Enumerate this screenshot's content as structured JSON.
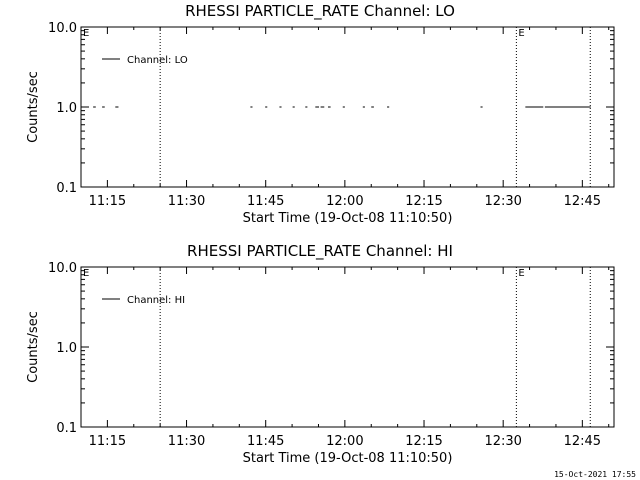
{
  "page": {
    "stamp": "15-Oct-2021 17:55"
  },
  "chart_data": [
    {
      "type": "line",
      "title": "RHESSI PARTICLE_RATE Channel: LO",
      "xlabel": "Start Time (19-Oct-08 11:10:50)",
      "ylabel": "Counts/sec",
      "yscale": "log",
      "xlim": [
        "11:10",
        "12:51"
      ],
      "ylim": [
        0.1,
        10.0
      ],
      "xticks": [
        "11:15",
        "11:30",
        "11:45",
        "12:00",
        "12:15",
        "12:30",
        "12:45"
      ],
      "yticks": [
        "0.1",
        "1.0",
        "10.0"
      ],
      "legend": {
        "position": "top-left",
        "entries": [
          "Channel: LO"
        ]
      },
      "vlines": [
        {
          "time": "11:25.0",
          "label": ""
        },
        {
          "time": "12:32.5",
          "label": "E"
        },
        {
          "time": "12:46.5",
          "label": ""
        }
      ],
      "edge_labels": [
        "E"
      ],
      "series": [
        {
          "name": "Channel: LO",
          "segments": [
            [
              "11:12.3",
              "11:12.8",
              1.0
            ],
            [
              "11:14.0",
              "11:14.5",
              1.0
            ],
            [
              "11:16.5",
              "11:17.1",
              1.0
            ],
            [
              "11:42.1",
              "11:42.5",
              1.0
            ],
            [
              "11:44.9",
              "11:45.3",
              1.0
            ],
            [
              "11:47.6",
              "11:48.0",
              1.0
            ],
            [
              "11:50.1",
              "11:50.5",
              1.0
            ],
            [
              "11:52.5",
              "11:52.9",
              1.0
            ],
            [
              "11:54.4",
              "11:55.1",
              1.0
            ],
            [
              "11:55.4",
              "11:56.1",
              1.0
            ],
            [
              "11:56.8",
              "11:57.3",
              1.0
            ],
            [
              "11:59.6",
              "12:00.0",
              1.0
            ],
            [
              "12:03.4",
              "12:03.8",
              1.0
            ],
            [
              "12:05.0",
              "12:05.5",
              1.0
            ],
            [
              "12:08.0",
              "12:08.4",
              1.0
            ],
            [
              "12:25.7",
              "12:26.1",
              1.0
            ],
            [
              "12:34.2",
              "12:37.6",
              1.0
            ],
            [
              "12:37.9",
              "12:46.6",
              1.0
            ]
          ]
        }
      ]
    },
    {
      "type": "line",
      "title": "RHESSI PARTICLE_RATE Channel: HI",
      "xlabel": "Start Time (19-Oct-08 11:10:50)",
      "ylabel": "Counts/sec",
      "yscale": "log",
      "xlim": [
        "11:10",
        "12:51"
      ],
      "ylim": [
        0.1,
        10.0
      ],
      "xticks": [
        "11:15",
        "11:30",
        "11:45",
        "12:00",
        "12:15",
        "12:30",
        "12:45"
      ],
      "yticks": [
        "0.1",
        "1.0",
        "10.0"
      ],
      "legend": {
        "position": "top-left",
        "entries": [
          "Channel: HI"
        ]
      },
      "vlines": [
        {
          "time": "11:25.0",
          "label": ""
        },
        {
          "time": "12:32.5",
          "label": "E"
        },
        {
          "time": "12:46.5",
          "label": ""
        }
      ],
      "edge_labels": [
        "E"
      ],
      "series": [
        {
          "name": "Channel: HI",
          "segments": []
        }
      ]
    }
  ]
}
